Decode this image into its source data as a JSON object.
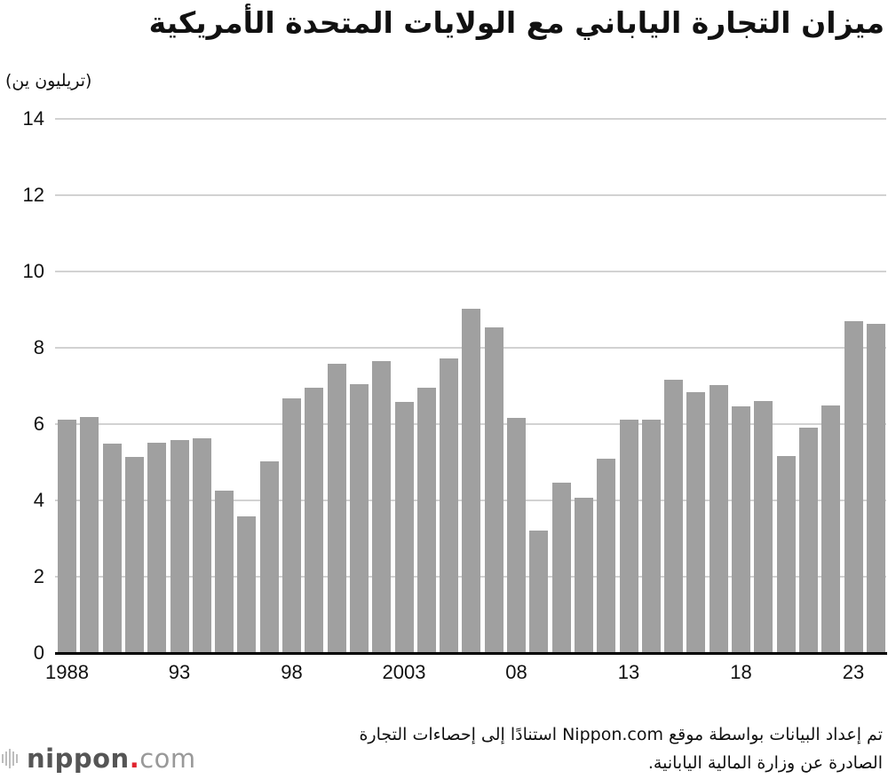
{
  "title": "ميزان التجارة الياباني مع الولايات المتحدة الأمريكية",
  "unit_label": "(تريليون ين)",
  "source": {
    "line1": "تم إعداد البيانات بواسطة موقع Nippon.com استنادًا إلى إحصاءات التجارة",
    "line2": "الصادرة عن وزارة المالية اليابانية."
  },
  "logo": {
    "brand": "nippon",
    "dot": ".",
    "suffix": "com",
    "icon": "sound-bars-icon",
    "accent_color": "#e0242f"
  },
  "colors": {
    "bar": "#a0a0a0",
    "grid": "#d2d2d2",
    "axis": "#000000"
  },
  "chart_data": {
    "type": "bar",
    "title": "ميزان التجارة الياباني مع الولايات المتحدة الأمريكية",
    "xlabel": "",
    "ylabel": "(تريليون ين)",
    "ylim": [
      0,
      14
    ],
    "yticks": [
      0,
      2,
      4,
      6,
      8,
      10,
      12,
      14
    ],
    "grid": true,
    "legend": null,
    "x_tick_labels": [
      {
        "year": 1988,
        "label": "1988"
      },
      {
        "year": 1993,
        "label": "93"
      },
      {
        "year": 1998,
        "label": "98"
      },
      {
        "year": 2003,
        "label": "2003"
      },
      {
        "year": 2008,
        "label": "08"
      },
      {
        "year": 2013,
        "label": "13"
      },
      {
        "year": 2018,
        "label": "18"
      },
      {
        "year": 2023,
        "label": "23"
      }
    ],
    "categories": [
      1988,
      1989,
      1990,
      1991,
      1992,
      1993,
      1994,
      1995,
      1996,
      1997,
      1998,
      1999,
      2000,
      2001,
      2002,
      2003,
      2004,
      2005,
      2006,
      2007,
      2008,
      2009,
      2010,
      2011,
      2012,
      2013,
      2014,
      2015,
      2016,
      2017,
      2018,
      2019,
      2020,
      2021,
      2022,
      2023,
      2024
    ],
    "values": [
      6.11,
      6.19,
      5.48,
      5.15,
      5.51,
      5.58,
      5.62,
      4.26,
      3.57,
      5.03,
      6.68,
      6.96,
      7.57,
      7.04,
      7.64,
      6.58,
      6.96,
      7.72,
      9.02,
      8.54,
      6.17,
      3.21,
      4.46,
      4.08,
      5.1,
      6.12,
      6.11,
      7.16,
      6.83,
      7.03,
      6.46,
      6.61,
      5.17,
      5.91,
      6.49,
      8.7,
      8.63
    ]
  }
}
